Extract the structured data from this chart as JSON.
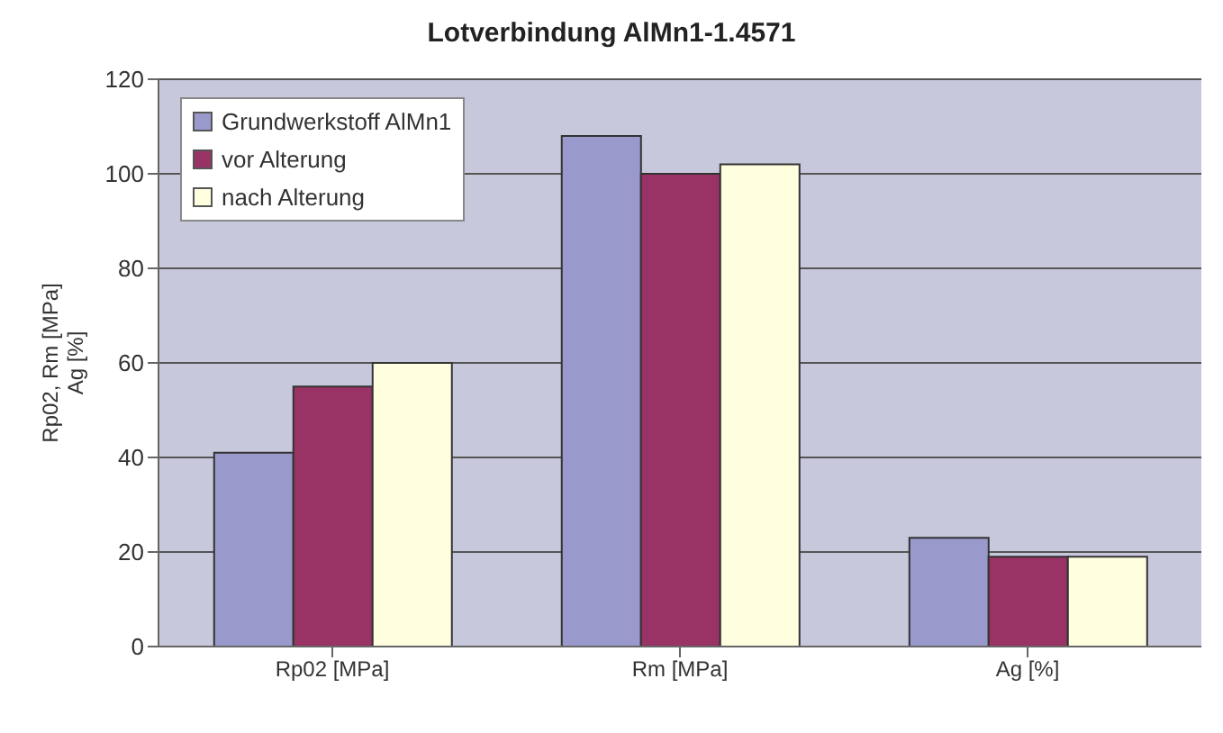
{
  "chart_data": {
    "type": "bar",
    "title": "Lotverbindung AlMn1-1.4571",
    "ylabel": "Rp02, Rm [MPa]\nAg [%]",
    "categories": [
      "Rp02 [MPa]",
      "Rm [MPa]",
      "Ag [%]"
    ],
    "series": [
      {
        "name": "Grundwerkstoff AlMn1",
        "color": "#9999cc",
        "values": [
          41,
          108,
          23
        ]
      },
      {
        "name": "vor Alterung",
        "color": "#993366",
        "values": [
          55,
          100,
          19
        ]
      },
      {
        "name": "nach Alterung",
        "color": "#ffffe0",
        "values": [
          60,
          102,
          19
        ]
      }
    ],
    "ylim": [
      0,
      120
    ],
    "yticks": [
      0,
      20,
      40,
      60,
      80,
      100,
      120
    ],
    "grid": "y",
    "legend": "top left"
  }
}
